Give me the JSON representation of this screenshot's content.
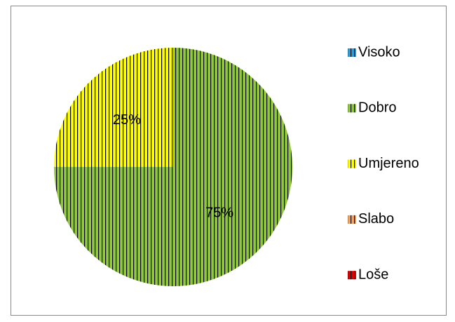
{
  "chart_data": {
    "type": "pie",
    "categories": [
      "Visoko",
      "Dobro",
      "Umjereno",
      "Slabo",
      "Loše"
    ],
    "values": [
      0,
      75,
      25,
      0,
      0
    ],
    "value_labels": [
      null,
      "75%",
      "25%",
      null,
      null
    ],
    "colors": [
      "#2e9fd8",
      "#92c83e",
      "#ffff00",
      "#f4a460",
      "#e00000"
    ],
    "legend": "right"
  }
}
